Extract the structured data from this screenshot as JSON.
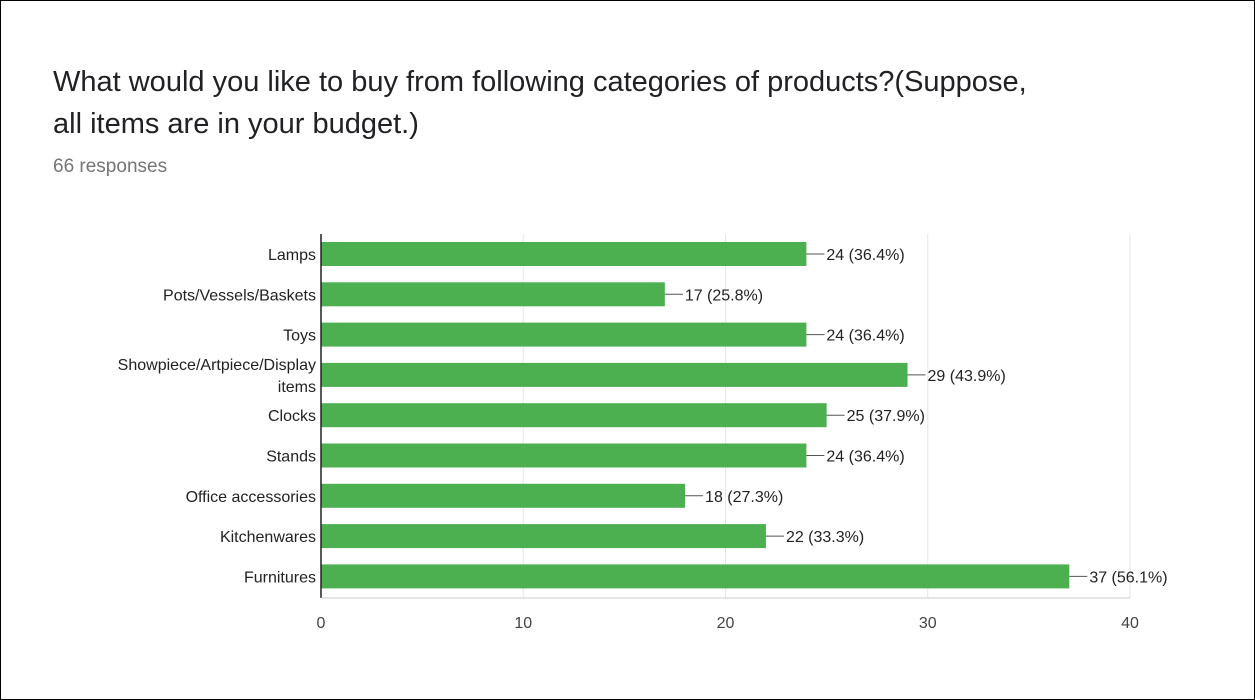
{
  "form": {
    "question": "What would you like to buy from following categories of products?(Suppose, all items are in your budget.)",
    "responses": "66 responses"
  },
  "chart_data": {
    "type": "bar",
    "orientation": "horizontal",
    "title": "What would you like to buy from following categories of products?(Suppose, all items are in your budget.)",
    "subtitle": "66 responses",
    "categories": [
      [
        "Lamps"
      ],
      [
        "Pots/Vessels/Baskets"
      ],
      [
        "Toys"
      ],
      [
        "Showpiece/Artpiece/Display",
        "items"
      ],
      [
        "Clocks"
      ],
      [
        "Stands"
      ],
      [
        "Office accessories"
      ],
      [
        "Kitchenwares"
      ],
      [
        "Furnitures"
      ]
    ],
    "values": [
      24,
      17,
      24,
      29,
      25,
      24,
      18,
      22,
      37
    ],
    "data_labels": [
      "24 (36.4%)",
      "17 (25.8%)",
      "24 (36.4%)",
      "29 (43.9%)",
      "25 (37.9%)",
      "24 (36.4%)",
      "18 (27.3%)",
      "22 (33.3%)",
      "37 (56.1%)"
    ],
    "xlim": [
      0,
      40
    ],
    "xticks": [
      0,
      10,
      20,
      30,
      40
    ],
    "grid": true,
    "bar_color": "#4caf50"
  }
}
